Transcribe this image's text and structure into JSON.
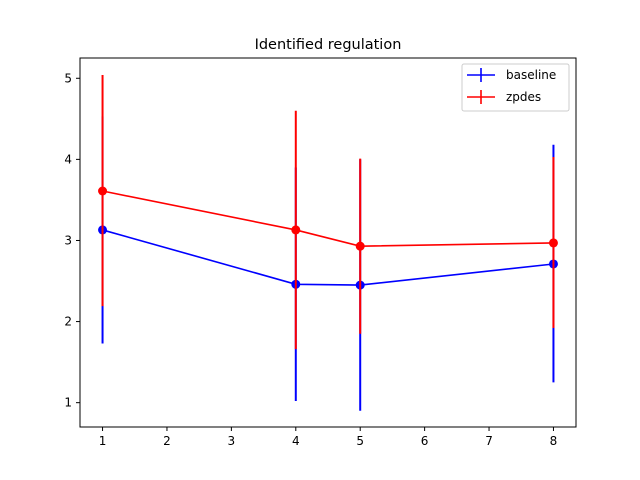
{
  "chart_data": {
    "type": "line",
    "title": "Identified regulation",
    "xlabel": "",
    "ylabel": "",
    "x": [
      1,
      4,
      5,
      8
    ],
    "xlim": [
      0.65,
      8.35
    ],
    "ylim": [
      0.7,
      5.25
    ],
    "xticks": [
      1,
      2,
      3,
      4,
      5,
      6,
      7,
      8
    ],
    "yticks": [
      1,
      2,
      3,
      4,
      5
    ],
    "grid": false,
    "legend_position": "top-right",
    "series": [
      {
        "name": "baseline",
        "color": "#0000ff",
        "values": [
          3.13,
          2.46,
          2.45,
          2.71
        ],
        "err_low": [
          1.73,
          1.02,
          0.9,
          1.25
        ],
        "err_high": [
          4.53,
          3.9,
          4.0,
          4.18
        ]
      },
      {
        "name": "zpdes",
        "color": "#ff0000",
        "values": [
          3.61,
          3.13,
          2.93,
          2.97
        ],
        "err_low": [
          2.19,
          1.66,
          1.85,
          1.92
        ],
        "err_high": [
          5.04,
          4.6,
          4.01,
          4.03
        ]
      }
    ]
  }
}
